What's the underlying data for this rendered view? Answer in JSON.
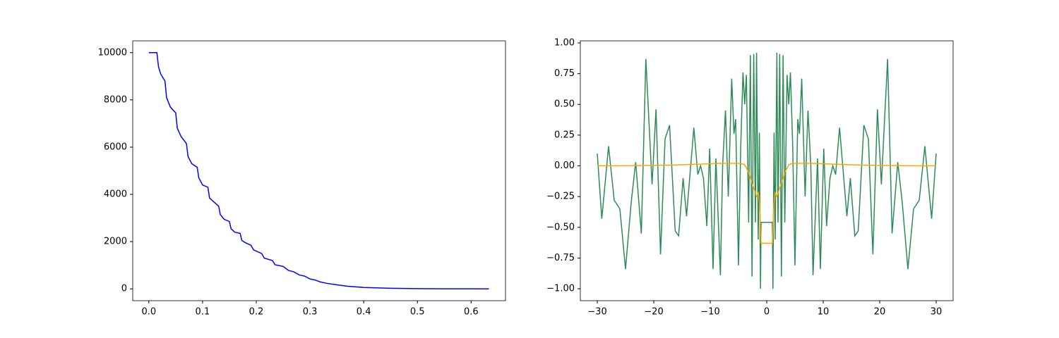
{
  "chart_data": [
    {
      "type": "line",
      "x": [
        0,
        0.015,
        0.018,
        0.022,
        0.03,
        0.033,
        0.04,
        0.05,
        0.053,
        0.06,
        0.07,
        0.073,
        0.08,
        0.09,
        0.093,
        0.1,
        0.11,
        0.113,
        0.12,
        0.13,
        0.133,
        0.14,
        0.15,
        0.153,
        0.16,
        0.17,
        0.173,
        0.18,
        0.19,
        0.195,
        0.21,
        0.215,
        0.23,
        0.235,
        0.25,
        0.26,
        0.27,
        0.28,
        0.29,
        0.3,
        0.31,
        0.32,
        0.33,
        0.35,
        0.37,
        0.4,
        0.45,
        0.5,
        0.55,
        0.6,
        0.633
      ],
      "series": [
        {
          "color": "#0000ff",
          "values": [
            10000,
            10000,
            9400,
            9100,
            8800,
            8100,
            7700,
            7450,
            6800,
            6450,
            6150,
            5600,
            5300,
            5150,
            4700,
            4400,
            4300,
            3850,
            3700,
            3500,
            3150,
            2950,
            2850,
            2550,
            2400,
            2350,
            2050,
            1950,
            1850,
            1650,
            1500,
            1300,
            1200,
            1020,
            950,
            780,
            720,
            590,
            540,
            420,
            370,
            290,
            240,
            170,
            110,
            60,
            25,
            10,
            4,
            2,
            1
          ]
        }
      ],
      "xlim": [
        -0.03,
        0.664
      ],
      "ylim": [
        -500,
        10500
      ],
      "xticks": [
        {
          "value": 0,
          "label": "0.0"
        },
        0.1,
        0.2,
        0.3,
        0.4,
        0.5,
        0.6
      ],
      "yticks": [
        0,
        2000,
        4000,
        6000,
        8000,
        10000
      ]
    },
    {
      "type": "line",
      "x": [
        -30,
        -29.2,
        -28,
        -27,
        -26,
        -25,
        -24,
        -23.2,
        -22.2,
        -21.4,
        -20.3,
        -19.6,
        -18.8,
        -18,
        -17.2,
        -16.2,
        -15.6,
        -14.8,
        -14.2,
        -12.9,
        -12.2,
        -11.7,
        -11.2,
        -10.6,
        -10.1,
        -9.5,
        -9,
        -8.2,
        -7.8,
        -7.3,
        -6.8,
        -6.2,
        -5.8,
        -5.5,
        -5,
        -4.6,
        -4.2,
        -3.9,
        -3.6,
        -3.2,
        -2.9,
        -2.6,
        -2.3,
        -2,
        -1.8,
        -1.5,
        -1.3,
        -1.1,
        -1,
        1,
        1.1,
        1.3,
        1.5,
        1.8,
        2,
        2.3,
        2.6,
        2.9,
        3.2,
        3.6,
        3.9,
        4.2,
        4.6,
        5,
        5.5,
        5.8,
        6.2,
        6.8,
        7.3,
        7.8,
        8.2,
        9,
        9.5,
        10.1,
        10.6,
        11.2,
        11.7,
        12.2,
        12.9,
        14.2,
        14.8,
        15.6,
        16.2,
        17.2,
        18,
        18.8,
        19.6,
        20.3,
        21.4,
        22.2,
        23.2,
        24,
        25,
        26,
        27,
        28,
        29.2,
        30
      ],
      "series": [
        {
          "color": "#2e8b57",
          "values": [
            0.1,
            -0.43,
            0.16,
            -0.28,
            -0.35,
            -0.84,
            -0.3,
            0.03,
            -0.55,
            0.87,
            -0.15,
            0.46,
            -0.72,
            0.22,
            0.33,
            -0.53,
            -0.57,
            -0.1,
            -0.41,
            0.31,
            -0.07,
            0,
            -0.1,
            -0.49,
            0.14,
            -0.84,
            0.06,
            -0.89,
            0.01,
            0.45,
            -0.25,
            0.71,
            0.26,
            0.38,
            -0.81,
            0.16,
            0.76,
            0.5,
            0.74,
            -0.46,
            0.9,
            -0.9,
            0.91,
            -0.46,
            0.92,
            -0.6,
            0.27,
            -1,
            -0.46,
            -0.46,
            -1,
            0.27,
            -0.6,
            0.92,
            -0.46,
            0.91,
            -0.9,
            0.9,
            -0.46,
            0.74,
            0.5,
            0.76,
            0.16,
            -0.81,
            0.38,
            0.26,
            0.71,
            -0.25,
            0.45,
            0.01,
            -0.89,
            0.06,
            -0.84,
            0.14,
            -0.49,
            -0.1,
            0,
            -0.07,
            0.31,
            -0.41,
            -0.1,
            -0.57,
            -0.53,
            0.33,
            0.22,
            -0.72,
            0.46,
            -0.15,
            0.87,
            -0.55,
            0.03,
            -0.3,
            -0.84,
            -0.35,
            -0.28,
            0.16,
            -0.43,
            0.1
          ]
        },
        {
          "color": "#ffa500",
          "values": [
            0,
            0,
            0,
            0,
            0,
            0.001,
            0.001,
            0.002,
            0.002,
            0.003,
            0.003,
            0.004,
            0.005,
            0.005,
            0.006,
            0.007,
            0.008,
            0.009,
            0.01,
            0.012,
            0.013,
            0.014,
            0.015,
            0.016,
            0.017,
            0.018,
            0.019,
            0.02,
            0.02,
            0.02,
            0.02,
            0.02,
            0.02,
            0.02,
            0.02,
            0.018,
            0.015,
            0.01,
            -0.02,
            -0.05,
            -0.1,
            -0.14,
            -0.18,
            -0.22,
            -0.25,
            -0.22,
            -0.3,
            -0.5,
            -0.63,
            -0.63,
            -0.5,
            -0.3,
            -0.22,
            -0.25,
            -0.22,
            -0.18,
            -0.14,
            -0.1,
            -0.05,
            -0.02,
            0.01,
            0.015,
            0.018,
            0.02,
            0.02,
            0.02,
            0.02,
            0.02,
            0.02,
            0.02,
            0.02,
            0.019,
            0.018,
            0.017,
            0.016,
            0.015,
            0.014,
            0.013,
            0.012,
            0.01,
            0.009,
            0.008,
            0.007,
            0.006,
            0.005,
            0.005,
            0.004,
            0.003,
            0.003,
            0.002,
            0.002,
            0.001,
            0.001,
            0,
            0,
            0,
            0,
            0
          ]
        }
      ],
      "xlim": [
        -33,
        33
      ],
      "ylim": [
        -1.097,
        1.017
      ],
      "xticks": [
        {
          "value": -30,
          "label": "−30"
        },
        {
          "value": -20,
          "label": "−20"
        },
        {
          "value": -10,
          "label": "−10"
        },
        0,
        10,
        20,
        30
      ],
      "yticks": [
        {
          "value": -1,
          "label": "−1.00"
        },
        {
          "value": -0.75,
          "label": "−0.75"
        },
        {
          "value": -0.5,
          "label": "−0.50"
        },
        {
          "value": -0.25,
          "label": "−0.25"
        },
        {
          "value": 0,
          "label": "0.00"
        },
        {
          "value": 0.25,
          "label": "0.25"
        },
        {
          "value": 0.5,
          "label": "0.50"
        },
        {
          "value": 0.75,
          "label": "0.75"
        },
        {
          "value": 1,
          "label": "1.00"
        }
      ]
    }
  ]
}
